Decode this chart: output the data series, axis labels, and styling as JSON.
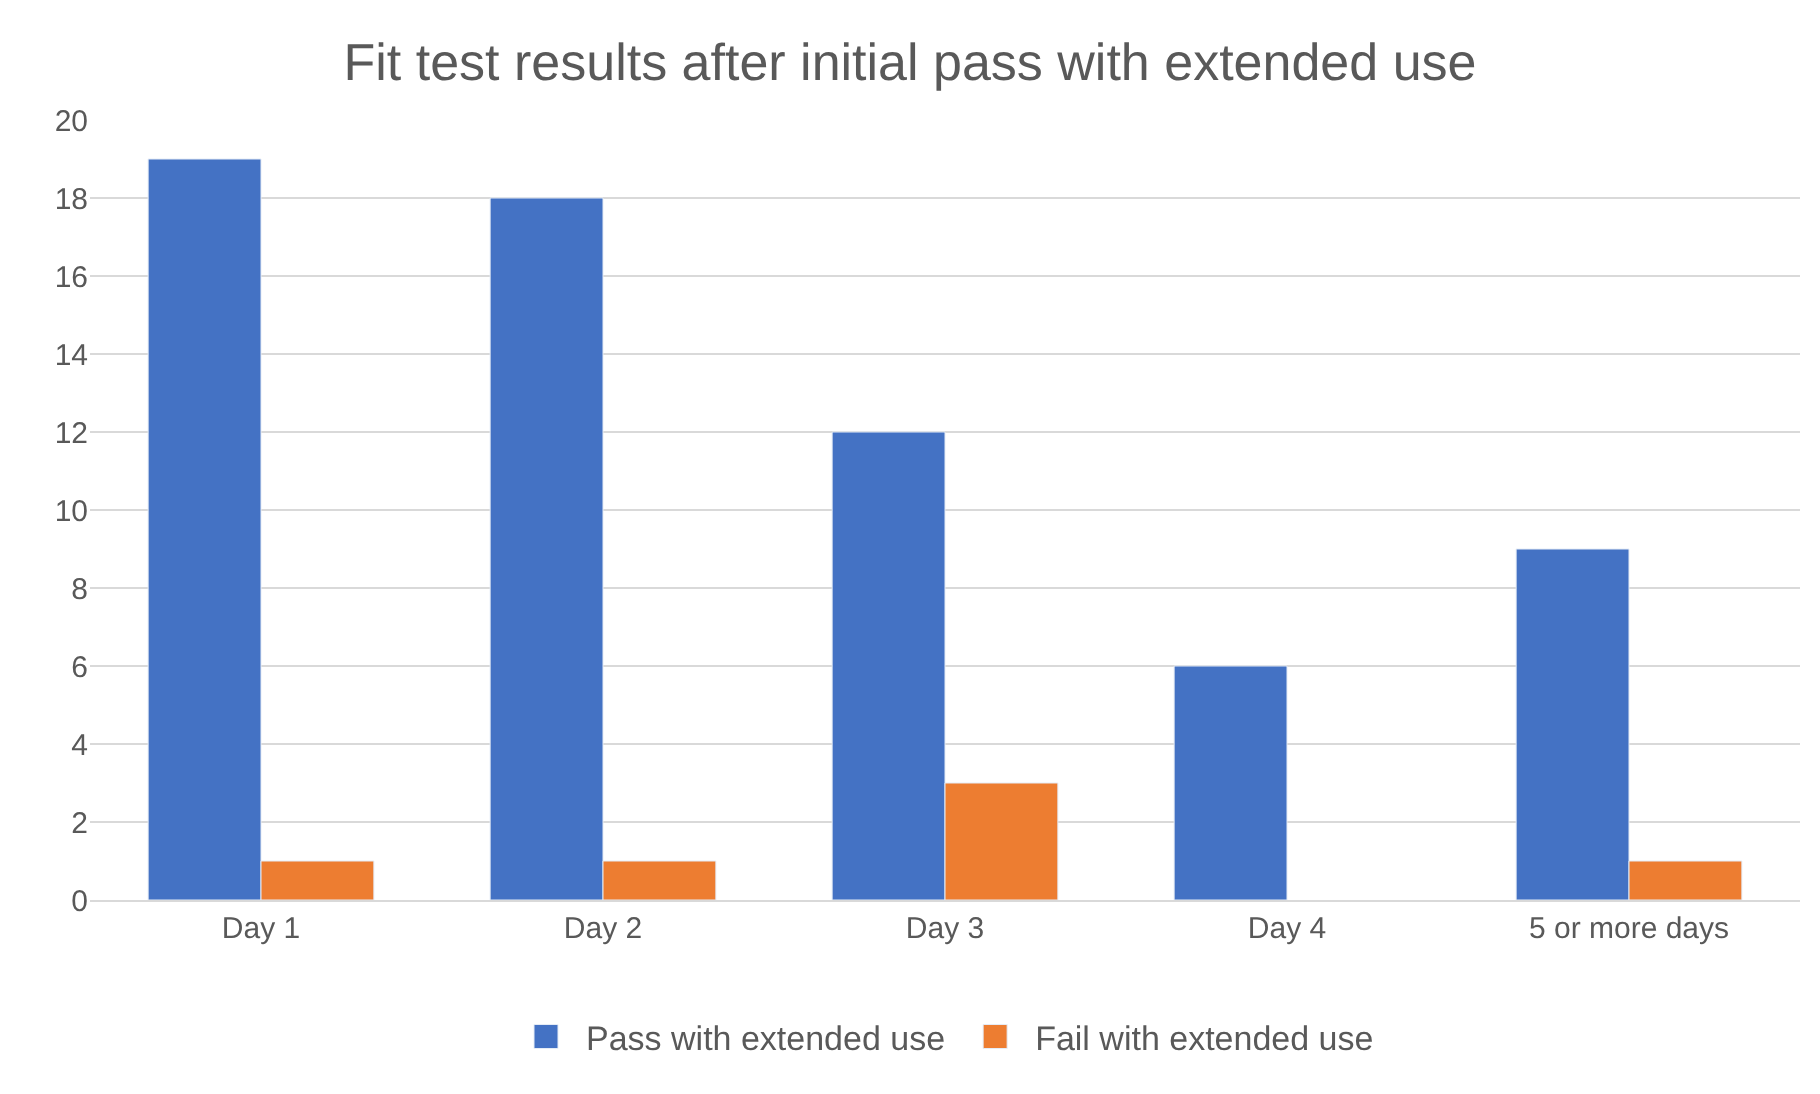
{
  "chart_data": {
    "type": "bar",
    "title": "Fit test results after initial pass with extended use",
    "categories": [
      "Day 1",
      "Day 2",
      "Day 3",
      "Day 4",
      "5 or more days"
    ],
    "series": [
      {
        "name": "Pass with extended use",
        "color": "#4472c4",
        "values": [
          19,
          18,
          12,
          6,
          9
        ]
      },
      {
        "name": "Fail with extended use",
        "color": "#ed7d31",
        "values": [
          1,
          1,
          3,
          null,
          1
        ]
      }
    ],
    "ylim": [
      0,
      20
    ],
    "yticks": [
      0,
      2,
      4,
      6,
      8,
      10,
      12,
      14,
      16,
      18,
      20
    ],
    "grid": "y",
    "legend": "bottom"
  }
}
